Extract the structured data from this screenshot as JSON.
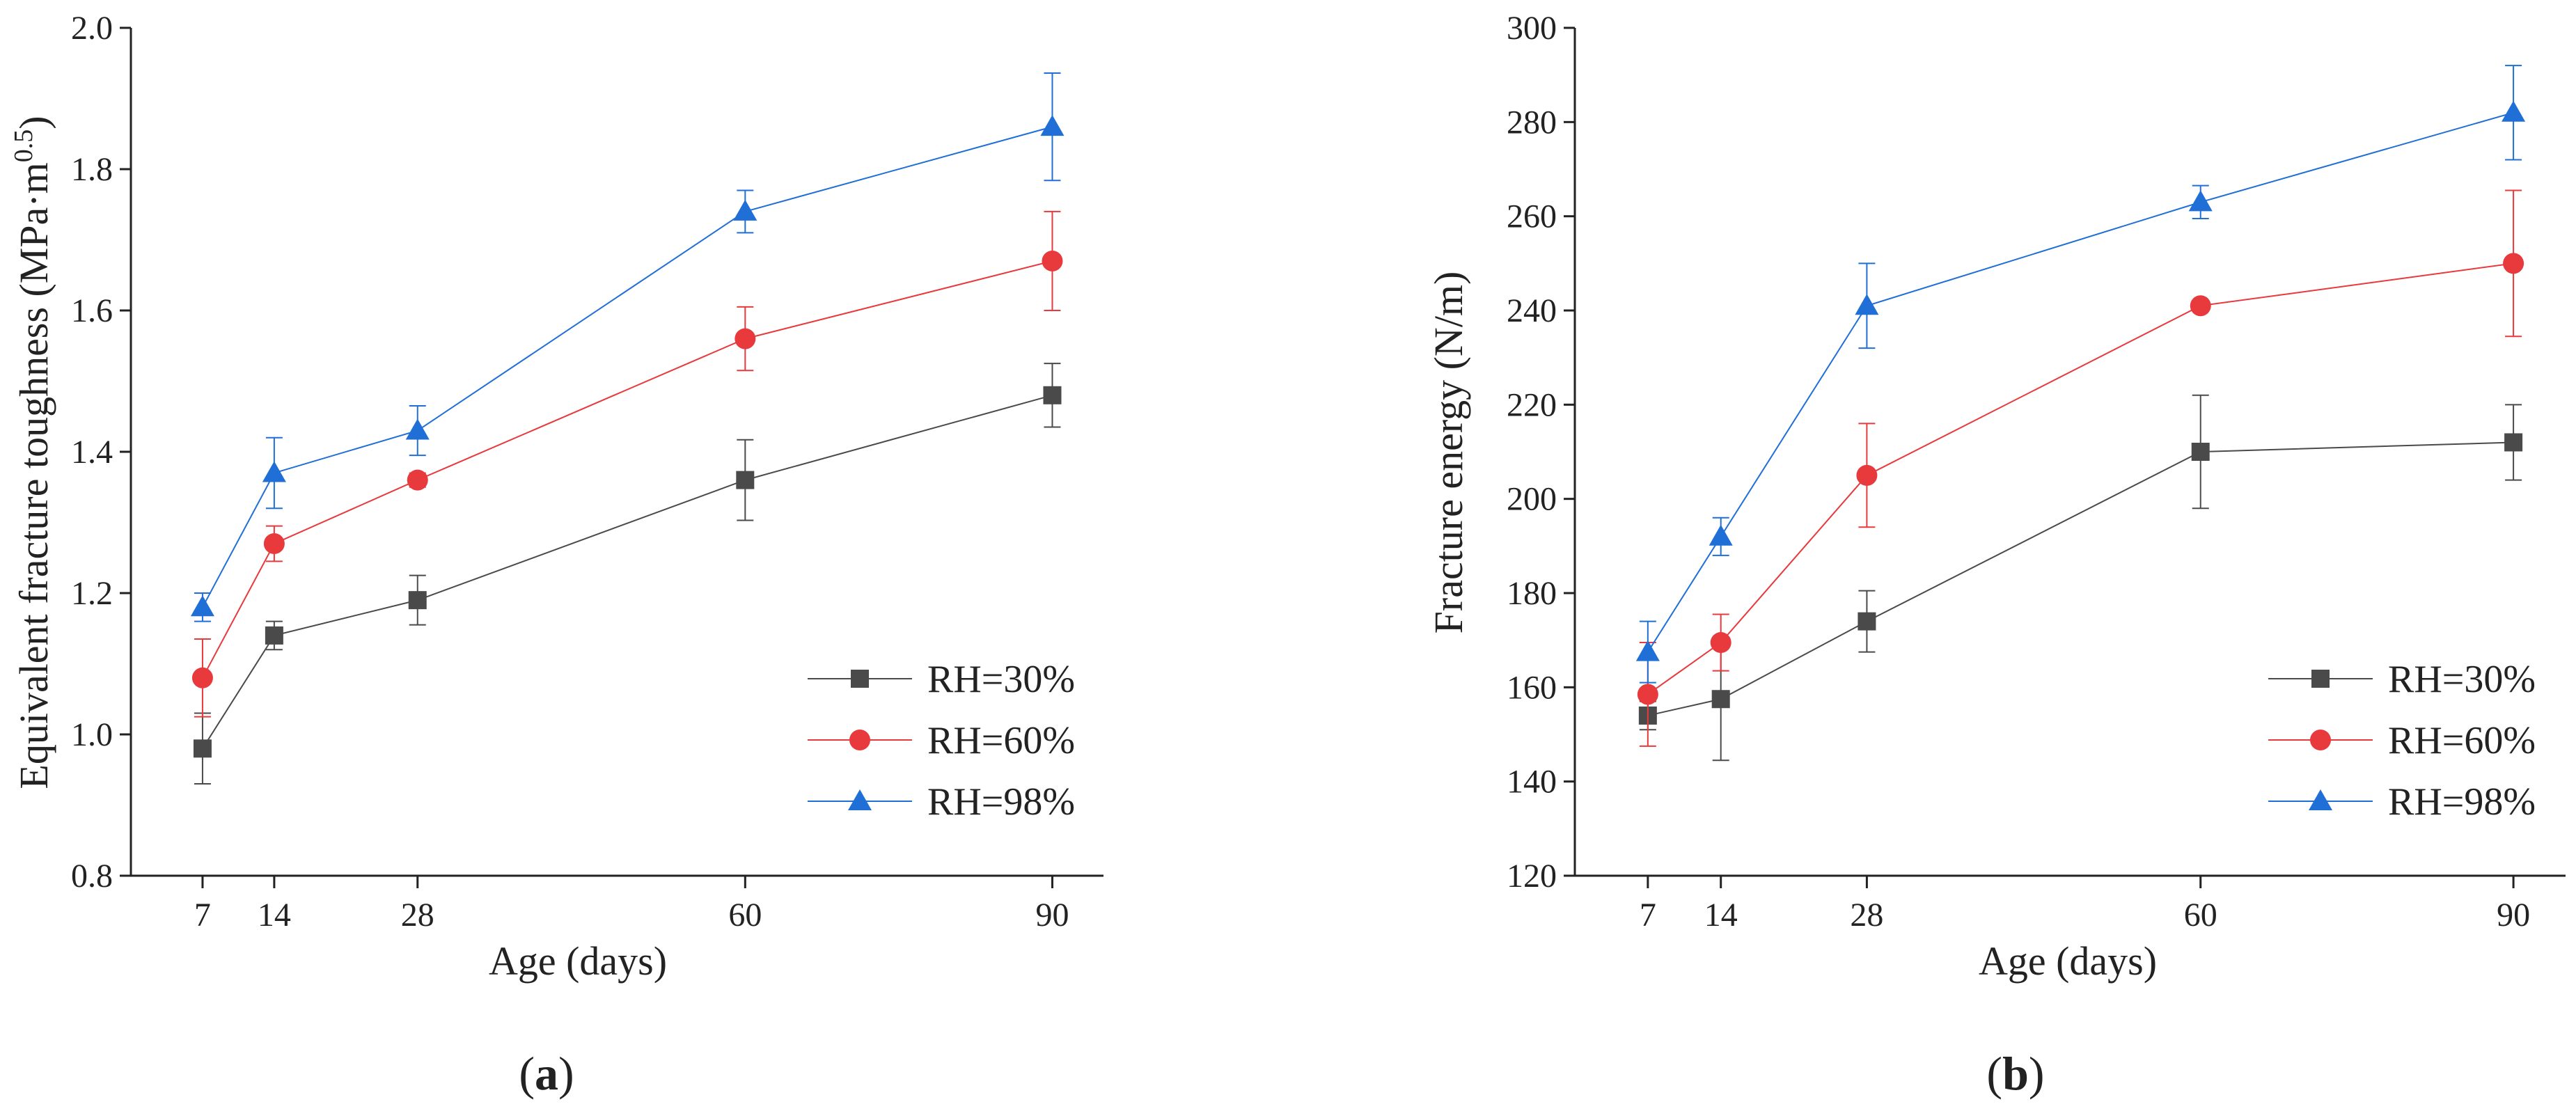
{
  "colors": {
    "rh30": "#4a4a4a",
    "rh60": "#e8393c",
    "rh98": "#1f6fd6"
  },
  "chart_data": [
    {
      "type": "line",
      "panel": "a",
      "panel_label": {
        "open": "(",
        "letter": "a",
        "close": ")"
      },
      "xlabel": "Age (days)",
      "ylabel": "Equivalent fracture toughness (MPa·m",
      "ylabel_sup": "0.5",
      "ylabel_close": ")",
      "x": [
        7,
        14,
        28,
        60,
        90
      ],
      "x_ticks": [
        7,
        14,
        28,
        60,
        90
      ],
      "x_tick_labels": [
        "7",
        "14",
        "28",
        "60",
        "90"
      ],
      "xlim": [
        0,
        95
      ],
      "ylim": [
        0.8,
        2.0
      ],
      "y_ticks": [
        0.8,
        1.0,
        1.2,
        1.4,
        1.6,
        1.8,
        2.0
      ],
      "y_tick_labels": [
        "0.8",
        "1.0",
        "1.2",
        "1.4",
        "1.6",
        "1.8",
        "2.0"
      ],
      "legend_position": "bottom-right",
      "series": [
        {
          "name": "RH=30%",
          "marker": "square",
          "color": "#4a4a4a",
          "values": [
            0.98,
            1.14,
            1.19,
            1.36,
            1.48
          ],
          "errors": [
            0.05,
            0.02,
            0.035,
            0.057,
            0.045
          ]
        },
        {
          "name": "RH=60%",
          "marker": "circle",
          "color": "#e8393c",
          "values": [
            1.08,
            1.27,
            1.36,
            1.56,
            1.67
          ],
          "errors": [
            0.055,
            0.025,
            0.01,
            0.045,
            0.07
          ]
        },
        {
          "name": "RH=98%",
          "marker": "triangle",
          "color": "#1f6fd6",
          "values": [
            1.18,
            1.37,
            1.43,
            1.74,
            1.86
          ],
          "errors": [
            0.02,
            0.05,
            0.035,
            0.03,
            0.076
          ]
        }
      ]
    },
    {
      "type": "line",
      "panel": "b",
      "panel_label": {
        "open": "(",
        "letter": "b",
        "close": ")"
      },
      "xlabel": "Age (days)",
      "ylabel": "Fracture energy (N/m)",
      "ylabel_sup": "",
      "ylabel_close": "",
      "x": [
        7,
        14,
        28,
        60,
        90
      ],
      "x_ticks": [
        7,
        14,
        28,
        60,
        90
      ],
      "x_tick_labels": [
        "7",
        "14",
        "28",
        "60",
        "90"
      ],
      "xlim": [
        0,
        95
      ],
      "ylim": [
        120,
        300
      ],
      "y_ticks": [
        120,
        140,
        160,
        180,
        200,
        220,
        240,
        260,
        280,
        300
      ],
      "y_tick_labels": [
        "120",
        "140",
        "160",
        "180",
        "200",
        "220",
        "240",
        "260",
        "280",
        "300"
      ],
      "legend_position": "bottom-right",
      "series": [
        {
          "name": "RH=30%",
          "marker": "square",
          "color": "#4a4a4a",
          "values": [
            154,
            157.5,
            174,
            210,
            212
          ],
          "errors": [
            3,
            13,
            6.5,
            12,
            8
          ]
        },
        {
          "name": "RH=60%",
          "marker": "circle",
          "color": "#e8393c",
          "values": [
            158.5,
            169.5,
            205,
            241,
            250
          ],
          "errors": [
            11,
            6,
            11,
            1,
            15.5
          ]
        },
        {
          "name": "RH=98%",
          "marker": "triangle",
          "color": "#1f6fd6",
          "values": [
            167.5,
            192,
            241,
            263,
            282
          ],
          "errors": [
            6.5,
            4,
            9,
            3.5,
            10
          ]
        }
      ]
    }
  ]
}
